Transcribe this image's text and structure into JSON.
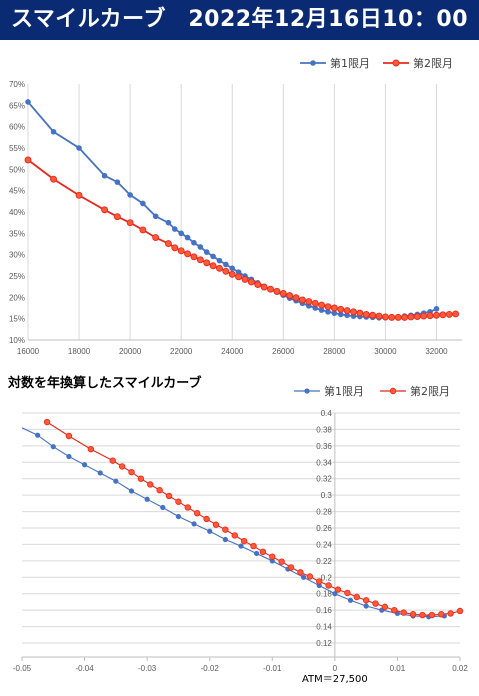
{
  "header": {
    "title": "スマイルカーブ　2022年12月16日10：00"
  },
  "subtitle": "対数を年換算したスマイルカーブ",
  "colors": {
    "blue": "#4472c4",
    "red": "#e8281e",
    "red_fill": "#ff5a36",
    "grid": "#d9d9d9",
    "banner": "#0a2a73"
  },
  "chart_data": [
    {
      "type": "line",
      "title": "",
      "xlabel": "",
      "ylabel": "",
      "xlim": [
        16000,
        33000
      ],
      "ylim": [
        10,
        70
      ],
      "x_ticks": [
        "16000",
        "18000",
        "20000",
        "22000",
        "24000",
        "26000",
        "28000",
        "30000",
        "32000"
      ],
      "y_ticks": [
        "10%",
        "15%",
        "20%",
        "25%",
        "30%",
        "35%",
        "40%",
        "45%",
        "50%",
        "55%",
        "60%",
        "65%",
        "70%"
      ],
      "grid": "vertical",
      "legend": "top-right",
      "series": [
        {
          "name": "第1限月",
          "color": "#4472c4",
          "x": [
            16000,
            17000,
            18000,
            19000,
            19500,
            20000,
            20500,
            21000,
            21500,
            21750,
            22000,
            22250,
            22500,
            22750,
            23000,
            23250,
            23500,
            23750,
            24000,
            24250,
            24500,
            24750,
            25000,
            25250,
            25500,
            25750,
            26000,
            26250,
            26500,
            26750,
            27000,
            27250,
            27500,
            27750,
            28000,
            28250,
            28500,
            28750,
            29000,
            29250,
            29500,
            29750,
            30000,
            30250,
            30500,
            30750,
            31000,
            31250,
            31500,
            31750,
            32000
          ],
          "y": [
            65.8,
            58.8,
            55.0,
            48.5,
            47.0,
            44.0,
            42.0,
            39.0,
            37.5,
            36.0,
            35.0,
            34.0,
            32.8,
            31.8,
            30.6,
            29.6,
            28.6,
            27.7,
            26.8,
            25.9,
            25.0,
            24.2,
            23.4,
            22.6,
            21.9,
            21.2,
            20.5,
            19.8,
            19.2,
            18.6,
            18.0,
            17.5,
            17.0,
            16.6,
            16.3,
            16.0,
            15.8,
            15.6,
            15.5,
            15.4,
            15.3,
            15.2,
            15.2,
            15.3,
            15.4,
            15.6,
            15.8,
            16.0,
            16.3,
            16.6,
            17.3
          ]
        },
        {
          "name": "第2限月",
          "color": "#e8281e",
          "x": [
            16000,
            17000,
            18000,
            19000,
            19500,
            20000,
            20500,
            21000,
            21500,
            21750,
            22000,
            22250,
            22500,
            22750,
            23000,
            23250,
            23500,
            23750,
            24000,
            24250,
            24500,
            24750,
            25000,
            25250,
            25500,
            25750,
            26000,
            26250,
            26500,
            26750,
            27000,
            27250,
            27500,
            27750,
            28000,
            28250,
            28500,
            28750,
            29000,
            29250,
            29500,
            29750,
            30000,
            30250,
            30500,
            30750,
            31000,
            31250,
            31500,
            31750,
            32000,
            32250,
            32500,
            32750
          ],
          "y": [
            52.2,
            47.7,
            43.9,
            40.5,
            38.9,
            37.5,
            35.8,
            34.0,
            32.6,
            31.6,
            30.9,
            30.2,
            29.5,
            28.8,
            28.1,
            27.4,
            26.8,
            26.1,
            25.4,
            24.8,
            24.2,
            23.6,
            23.0,
            22.4,
            21.9,
            21.4,
            20.9,
            20.4,
            19.9,
            19.4,
            19.0,
            18.6,
            18.2,
            17.8,
            17.5,
            17.2,
            16.9,
            16.6,
            16.3,
            16.0,
            15.8,
            15.6,
            15.4,
            15.3,
            15.3,
            15.3,
            15.4,
            15.5,
            15.6,
            15.7,
            15.8,
            15.9,
            16.0,
            16.1
          ]
        }
      ]
    },
    {
      "type": "line",
      "title": "対数を年換算したスマイルカーブ",
      "xlabel": "",
      "ylabel": "",
      "xlim": [
        -0.05,
        0.02
      ],
      "ylim": [
        0.12,
        0.4
      ],
      "x_ticks": [
        "-0.05",
        "-0.04",
        "-0.03",
        "-0.02",
        "-0.01",
        "0",
        "0.01",
        "0.02"
      ],
      "y_ticks": [
        "0.12",
        "0.14",
        "0.16",
        "0.18",
        "0.2",
        "0.22",
        "0.24",
        "0.26",
        "0.28",
        "0.3",
        "0.32",
        "0.34",
        "0.36",
        "0.38",
        "0.4"
      ],
      "grid": "horizontal",
      "legend": "top-right",
      "annotation": "ATM＝27,500",
      "series": [
        {
          "name": "第1限月",
          "color": "#4472c4",
          "x": [
            -0.05,
            -0.0475,
            -0.045,
            -0.0425,
            -0.04,
            -0.0375,
            -0.035,
            -0.0325,
            -0.03,
            -0.0275,
            -0.025,
            -0.0225,
            -0.02,
            -0.0175,
            -0.015,
            -0.0125,
            -0.01,
            -0.0075,
            -0.005,
            -0.0025,
            0,
            0.0025,
            0.005,
            0.0075,
            0.01,
            0.0125,
            0.015,
            0.0175
          ],
          "y": [
            0.382,
            0.373,
            0.359,
            0.347,
            0.337,
            0.327,
            0.317,
            0.305,
            0.295,
            0.285,
            0.274,
            0.265,
            0.256,
            0.246,
            0.238,
            0.229,
            0.22,
            0.21,
            0.2,
            0.19,
            0.18,
            0.172,
            0.165,
            0.16,
            0.156,
            0.153,
            0.152,
            0.153
          ]
        },
        {
          "name": "第2限月",
          "color": "#e8281e",
          "x": [
            -0.046,
            -0.0425,
            -0.039,
            -0.0355,
            -0.034,
            -0.0325,
            -0.031,
            -0.0295,
            -0.028,
            -0.0265,
            -0.025,
            -0.0235,
            -0.022,
            -0.0205,
            -0.019,
            -0.0175,
            -0.016,
            -0.0145,
            -0.013,
            -0.0115,
            -0.01,
            -0.0085,
            -0.007,
            -0.0055,
            -0.004,
            -0.0025,
            -0.001,
            0.0005,
            0.002,
            0.0035,
            0.005,
            0.0065,
            0.008,
            0.0095,
            0.011,
            0.0125,
            0.014,
            0.0155,
            0.017,
            0.0185,
            0.02
          ],
          "y": [
            0.389,
            0.372,
            0.356,
            0.342,
            0.335,
            0.328,
            0.32,
            0.313,
            0.306,
            0.299,
            0.292,
            0.285,
            0.278,
            0.271,
            0.264,
            0.258,
            0.251,
            0.244,
            0.238,
            0.231,
            0.225,
            0.219,
            0.212,
            0.206,
            0.201,
            0.195,
            0.19,
            0.185,
            0.181,
            0.176,
            0.172,
            0.168,
            0.164,
            0.16,
            0.157,
            0.155,
            0.154,
            0.154,
            0.155,
            0.156,
            0.159
          ]
        }
      ]
    }
  ]
}
